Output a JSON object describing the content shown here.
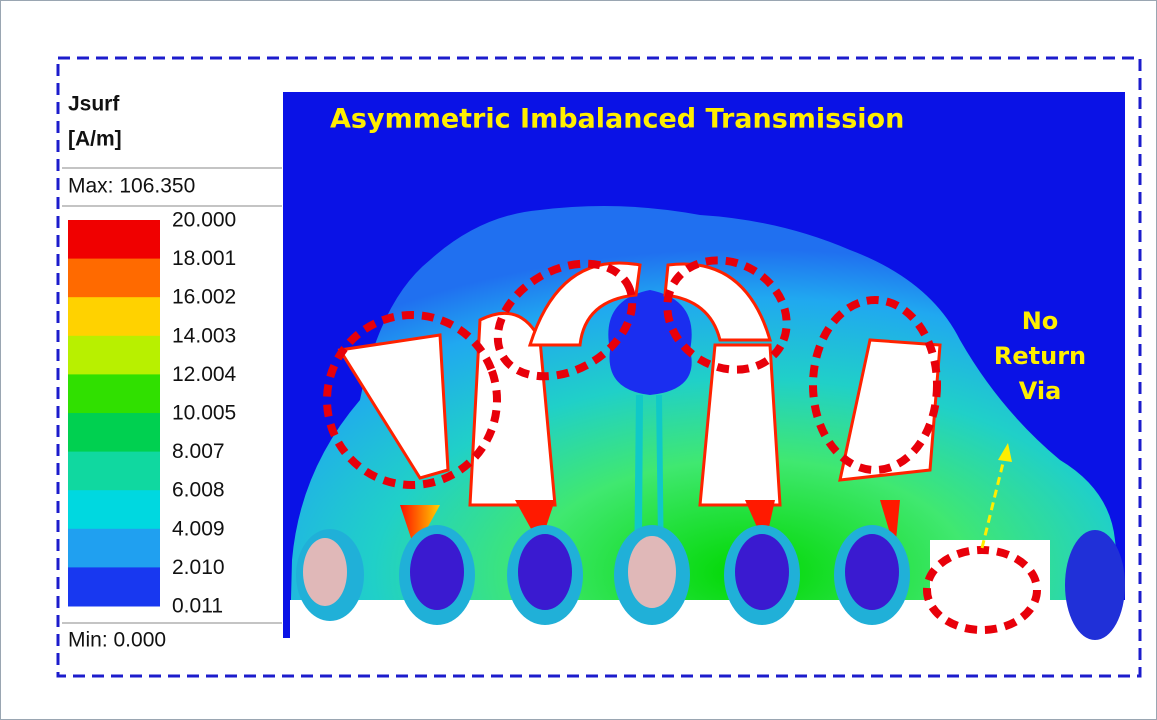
{
  "legend": {
    "title": "Jsurf",
    "unit": "[A/m]",
    "max": "Max: 106.350",
    "levels": [
      "20.000",
      "18.001",
      "16.002",
      "14.003",
      "12.004",
      "10.005",
      "8.007",
      "6.008",
      "4.009",
      "2.010",
      "0.011"
    ],
    "min": "Min: 0.000"
  },
  "annotations": {
    "title": "Asymmetric Imbalanced Transmission",
    "callout": [
      "No",
      "Return",
      "Via"
    ]
  }
}
